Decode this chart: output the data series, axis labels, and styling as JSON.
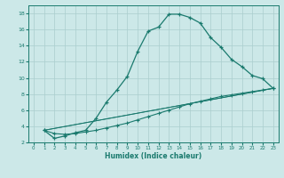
{
  "title": "",
  "xlabel": "Humidex (Indice chaleur)",
  "bg_color": "#cce8e8",
  "line_color": "#1a7a6e",
  "grid_color": "#aacece",
  "xlim": [
    -0.5,
    23.5
  ],
  "ylim": [
    2,
    19
  ],
  "xticks": [
    0,
    1,
    2,
    3,
    4,
    5,
    6,
    7,
    8,
    9,
    10,
    11,
    12,
    13,
    14,
    15,
    16,
    17,
    18,
    19,
    20,
    21,
    22,
    23
  ],
  "yticks": [
    2,
    4,
    6,
    8,
    10,
    12,
    14,
    16,
    18
  ],
  "curve_x": [
    1,
    2,
    3,
    4,
    5,
    6,
    7,
    8,
    9,
    10,
    11,
    12,
    13,
    14,
    15,
    16,
    17,
    18,
    19,
    20,
    21,
    22,
    23
  ],
  "curve_y": [
    3.5,
    2.5,
    2.8,
    3.2,
    3.5,
    5.0,
    7.0,
    8.5,
    10.2,
    13.3,
    15.8,
    16.3,
    17.9,
    17.9,
    17.5,
    16.8,
    15.0,
    13.8,
    12.3,
    11.4,
    10.3,
    9.9,
    8.7
  ],
  "line2_x": [
    1,
    2,
    3,
    4,
    5,
    6,
    7,
    8,
    9,
    10,
    11,
    12,
    13,
    14,
    15,
    16,
    17,
    18,
    19,
    20,
    21,
    22,
    23
  ],
  "line2_y": [
    3.5,
    3.1,
    3.0,
    3.1,
    3.3,
    3.5,
    3.8,
    4.1,
    4.4,
    4.8,
    5.2,
    5.6,
    6.0,
    6.4,
    6.8,
    7.1,
    7.4,
    7.7,
    7.9,
    8.1,
    8.3,
    8.5,
    8.7
  ],
  "line3_x": [
    1,
    23
  ],
  "line3_y": [
    3.5,
    8.7
  ],
  "line4_x": [
    1,
    23
  ],
  "line4_y": [
    3.5,
    8.7
  ]
}
